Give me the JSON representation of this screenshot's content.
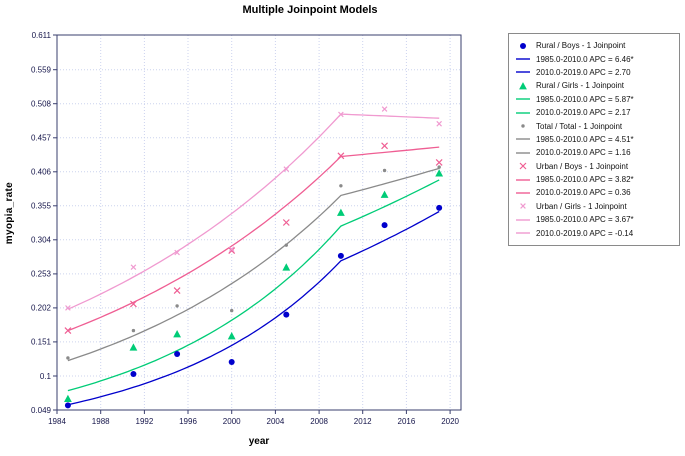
{
  "chart_data": {
    "type": "line",
    "title": "Multiple Joinpoint Models",
    "xlabel": "year",
    "ylabel": "myopia_rate",
    "x_range": [
      1984,
      2021
    ],
    "y_range": [
      0.049,
      0.611
    ],
    "x_ticks": [
      1984,
      1988,
      1992,
      1996,
      2000,
      2004,
      2008,
      2012,
      2016,
      2020
    ],
    "y_ticks": [
      0.049,
      0.1,
      0.151,
      0.202,
      0.253,
      0.304,
      0.355,
      0.406,
      0.457,
      0.508,
      0.559,
      0.611
    ],
    "grid": true,
    "legend_position": "right",
    "joinpoint_year": 2010,
    "series": [
      {
        "name": "Rural / Boys - 1 Joinpoint",
        "color": "#0000cc",
        "marker": "circle",
        "marker_size": 3,
        "obs_x": [
          1985,
          1991,
          1995,
          2000,
          2005,
          2010,
          2014,
          2019
        ],
        "obs_y": [
          0.056,
          0.103,
          0.133,
          0.121,
          0.192,
          0.28,
          0.326,
          0.352
        ],
        "segments": [
          {
            "label": "1985.0-2010.0 APC = 6.46*",
            "x0": 1985,
            "x1": 2010,
            "y_start": 0.057,
            "apc": 6.46
          },
          {
            "label": "2010.0-2019.0 APC = 2.70",
            "x0": 2010,
            "x1": 2019,
            "apc": 2.7
          }
        ]
      },
      {
        "name": "Rural / Girls - 1 Joinpoint",
        "color": "#00cc77",
        "marker": "triangle",
        "marker_size": 3.4,
        "obs_x": [
          1985,
          1991,
          1995,
          2000,
          2005,
          2010,
          2014,
          2019
        ],
        "obs_y": [
          0.066,
          0.143,
          0.163,
          0.16,
          0.263,
          0.345,
          0.372,
          0.404
        ],
        "segments": [
          {
            "label": "1985.0-2010.0 APC = 5.87*",
            "x0": 1985,
            "x1": 2010,
            "y_start": 0.078,
            "apc": 5.87
          },
          {
            "label": "2010.0-2019.0 APC = 2.17",
            "x0": 2010,
            "x1": 2019,
            "apc": 2.17
          }
        ]
      },
      {
        "name": "Total / Total - 1 Joinpoint",
        "color": "#8a8a8a",
        "marker": "dot",
        "marker_size": 1.7,
        "obs_x": [
          1985,
          1991,
          1995,
          2000,
          2005,
          2010,
          2014,
          2019
        ],
        "obs_y": [
          0.127,
          0.168,
          0.205,
          0.198,
          0.296,
          0.385,
          0.408,
          0.413
        ],
        "segments": [
          {
            "label": "1985.0-2010.0 APC = 4.51*",
            "x0": 1985,
            "x1": 2010,
            "y_start": 0.123,
            "apc": 4.51
          },
          {
            "label": "2010.0-2019.0 APC = 1.16",
            "x0": 2010,
            "x1": 2019,
            "apc": 1.16
          }
        ]
      },
      {
        "name": "Urban / Boys - 1 Joinpoint",
        "color": "#ef5e93",
        "marker": "x",
        "marker_size": 3,
        "obs_x": [
          1985,
          1991,
          1995,
          2000,
          2005,
          2010,
          2014,
          2019
        ],
        "obs_y": [
          0.168,
          0.208,
          0.228,
          0.288,
          0.33,
          0.43,
          0.445,
          0.42
        ],
        "segments": [
          {
            "label": "1985.0-2010.0 APC = 3.82*",
            "x0": 1985,
            "x1": 2010,
            "y_start": 0.168,
            "apc": 3.82
          },
          {
            "label": "2010.0-2019.0 APC = 0.36",
            "x0": 2010,
            "x1": 2019,
            "apc": 0.36
          }
        ]
      },
      {
        "name": "Urban / Girls - 1 Joinpoint",
        "color": "#f09ad0",
        "marker": "x",
        "marker_size": 2.4,
        "obs_x": [
          1985,
          1991,
          1995,
          2000,
          2005,
          2010,
          2014,
          2019
        ],
        "obs_y": [
          0.202,
          0.263,
          0.285,
          0.29,
          0.41,
          0.492,
          0.5,
          0.478
        ],
        "segments": [
          {
            "label": "1985.0-2010.0 APC = 3.67*",
            "x0": 1985,
            "x1": 2010,
            "y_start": 0.2,
            "apc": 3.67
          },
          {
            "label": "2010.0-2019.0 APC = -0.14",
            "x0": 2010,
            "x1": 2019,
            "apc": -0.14
          }
        ]
      }
    ]
  }
}
